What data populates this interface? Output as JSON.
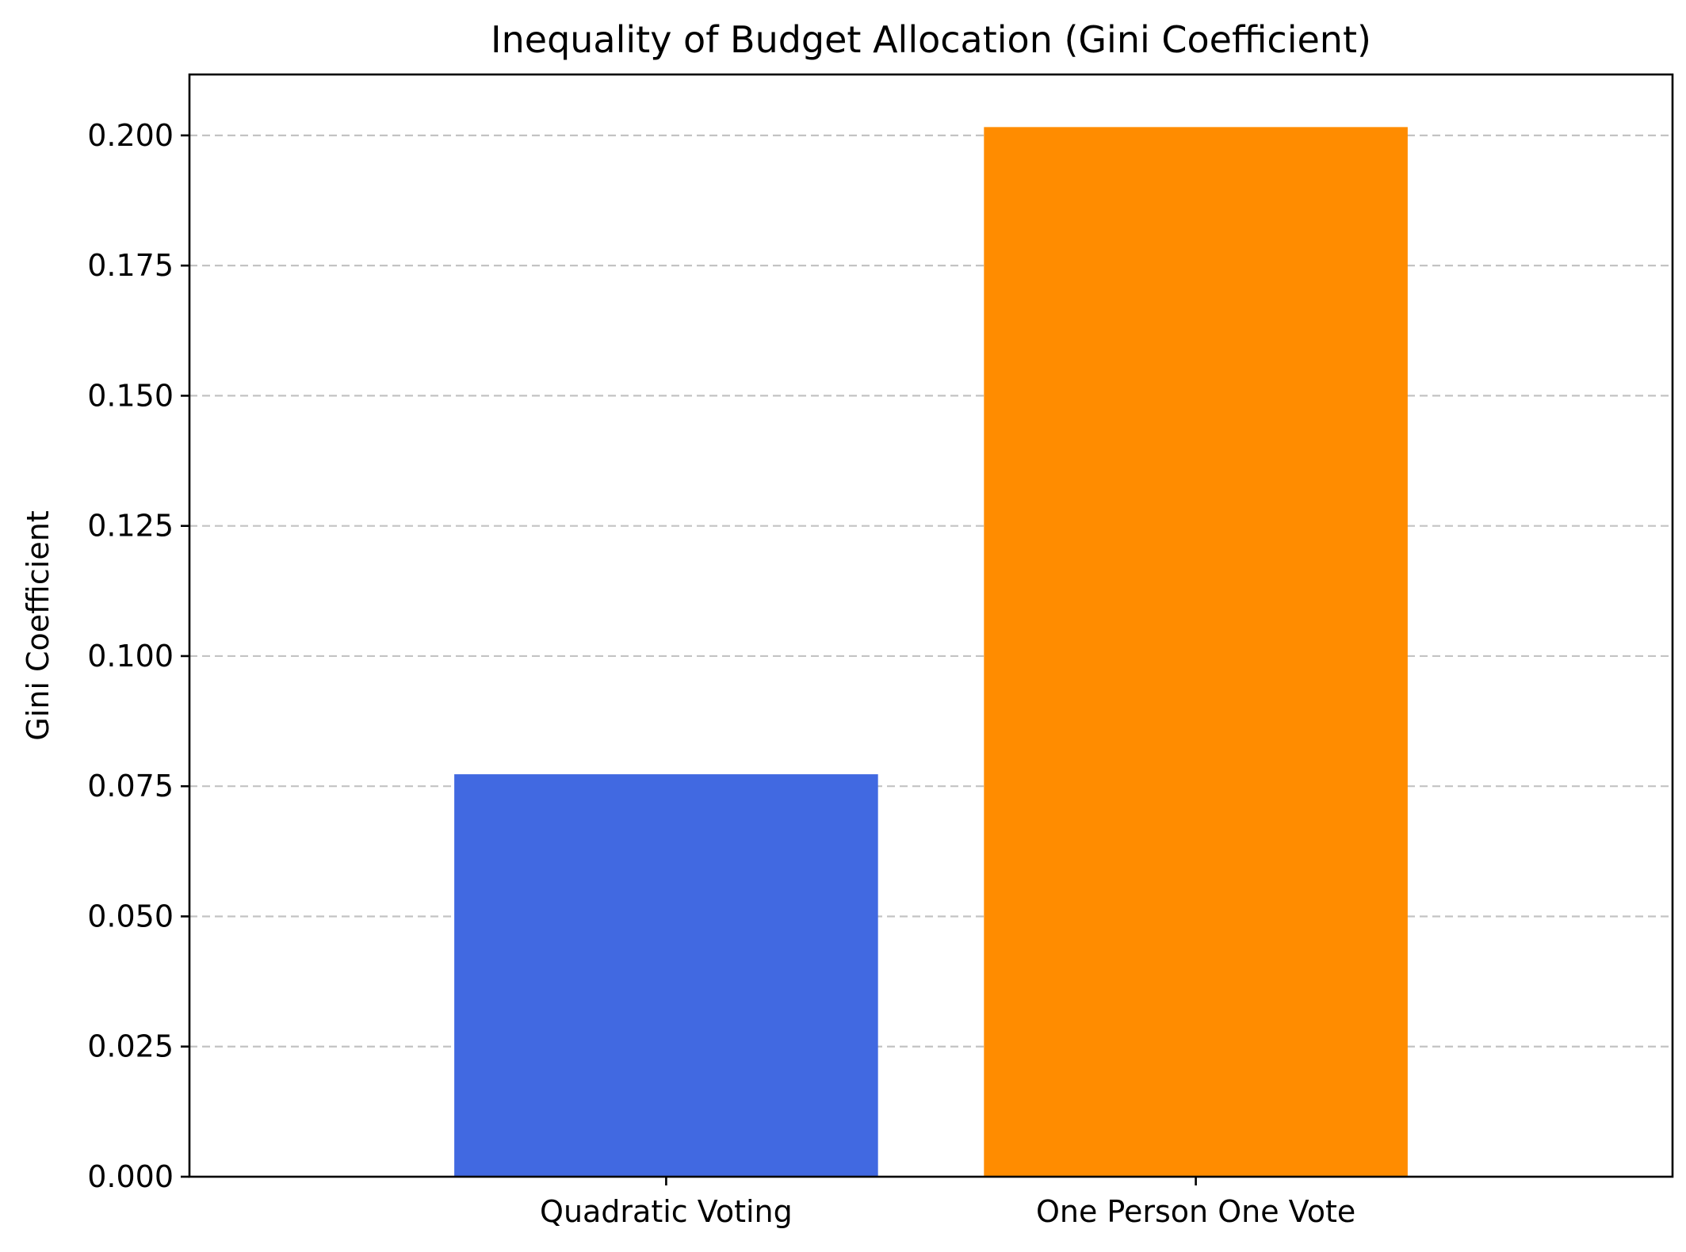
{
  "chart_data": {
    "type": "bar",
    "title": "Inequality of Budget Allocation (Gini Coefficient)",
    "xlabel": "",
    "ylabel": "Gini Coefficient",
    "categories": [
      "Quadratic Voting",
      "One Person One Vote"
    ],
    "values": [
      0.0773,
      0.2016
    ],
    "colors": [
      "#4169e1",
      "#ff8c00"
    ],
    "ylim": [
      0,
      0.2117
    ],
    "yticks": [
      0.0,
      0.025,
      0.05,
      0.075,
      0.1,
      0.125,
      0.15,
      0.175,
      0.2
    ],
    "ytick_labels": [
      "0.000",
      "0.025",
      "0.050",
      "0.075",
      "0.100",
      "0.125",
      "0.150",
      "0.175",
      "0.200"
    ],
    "grid": {
      "axis": "y",
      "style": "dashed",
      "color": "#b0b0b0"
    },
    "legend": "none"
  }
}
